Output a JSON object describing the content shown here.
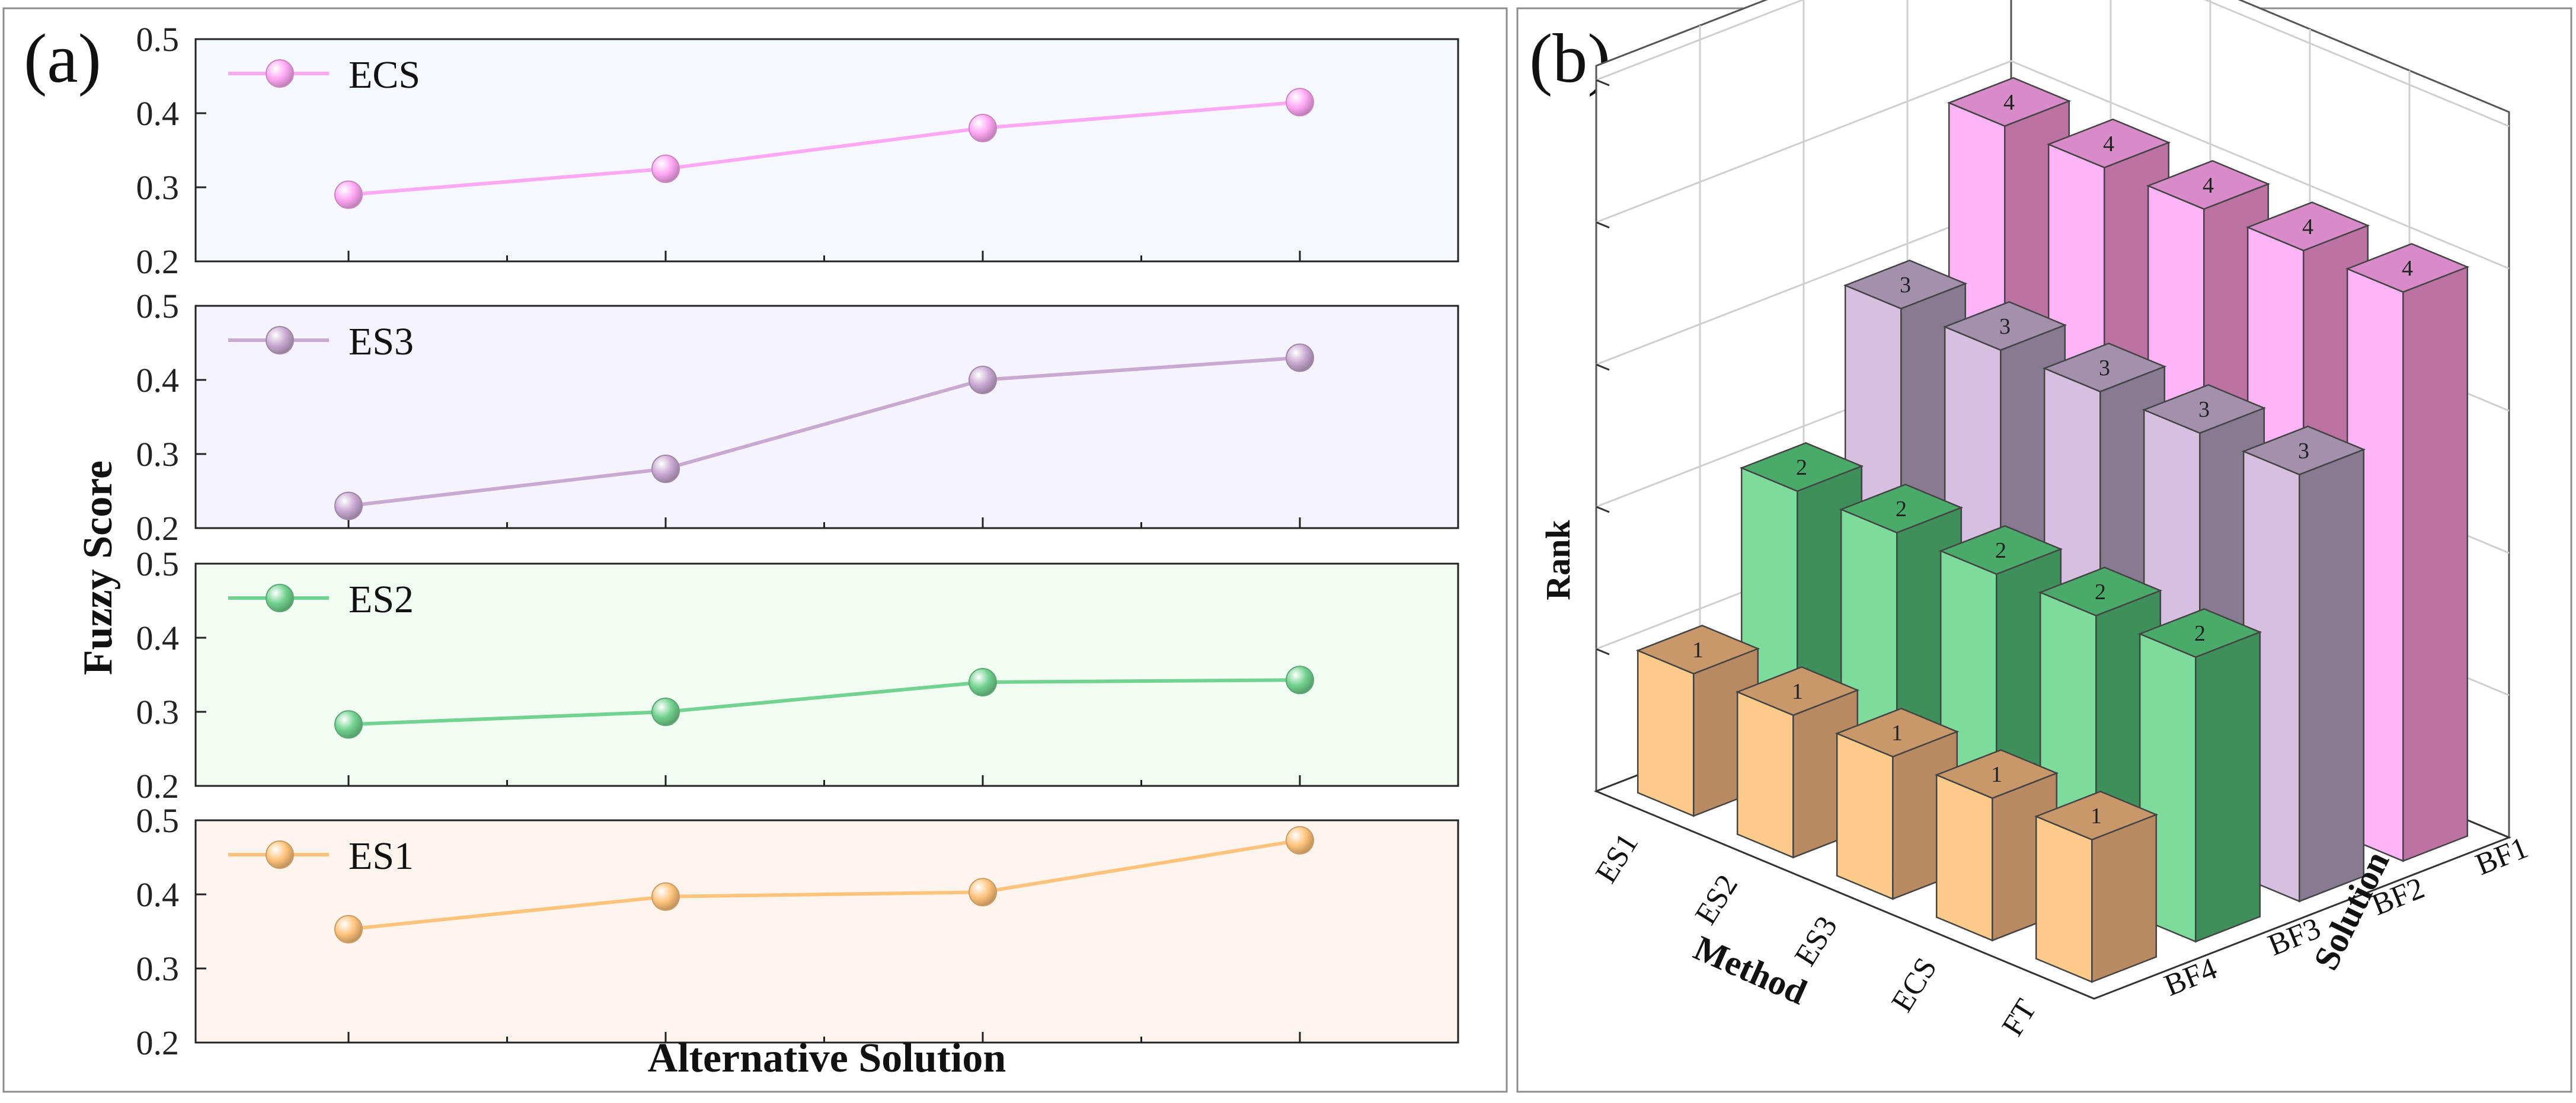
{
  "figure": {
    "left_label": "(a)",
    "right_label": "(b)"
  },
  "chart_data": [
    {
      "type": "line",
      "panel": "(a)",
      "xlabel": "Alternative Solution",
      "ylabel": "Fuzzy Score",
      "ylim": [
        0.2,
        0.5
      ],
      "yticks": [
        "0.2",
        "0.3",
        "0.4",
        "0.5"
      ],
      "x_positions": 4,
      "grid": false,
      "legend_position": "top-left",
      "series": [
        {
          "name": "ECS",
          "color": "#ffa8f4",
          "bg": "#f5f8fd",
          "values": [
            0.29,
            0.325,
            0.38,
            0.415
          ]
        },
        {
          "name": "ES3",
          "color": "#c9a9d2",
          "bg": "#f5f3fd",
          "values": [
            0.23,
            0.28,
            0.4,
            0.43
          ]
        },
        {
          "name": "ES2",
          "color": "#72d28f",
          "bg": "#f1fcf3",
          "values": [
            0.283,
            0.3,
            0.34,
            0.343
          ]
        },
        {
          "name": "ES1",
          "color": "#ffc37c",
          "bg": "#fdf4ee",
          "values": [
            0.353,
            0.397,
            0.403,
            0.473
          ]
        }
      ]
    },
    {
      "type": "bar3d",
      "panel": "(b)",
      "zlabel": "Rank",
      "xlabel": "Method",
      "ylabel": "Solution",
      "methods": [
        "ES1",
        "ES2",
        "ES3",
        "ECS",
        "FT"
      ],
      "solutions": [
        "BF1",
        "BF2",
        "BF3",
        "BF4"
      ],
      "grid": true,
      "rows": [
        {
          "solution": "BF4",
          "rank": 1,
          "label": "1",
          "color": "#ffcb8a",
          "top": "#c8976a",
          "side": "#b98a62"
        },
        {
          "solution": "BF3",
          "rank": 2,
          "label": "2",
          "color": "#7ddb9c",
          "top": "#4aaa6a",
          "side": "#3e8f59"
        },
        {
          "solution": "BF2",
          "rank": 3,
          "label": "3",
          "color": "#d6bfe0",
          "top": "#a290ad",
          "side": "#877a92"
        },
        {
          "solution": "BF1",
          "rank": 4,
          "label": "4",
          "color": "#ffb5f8",
          "top": "#d98ac9",
          "side": "#bd72a4"
        }
      ]
    }
  ]
}
